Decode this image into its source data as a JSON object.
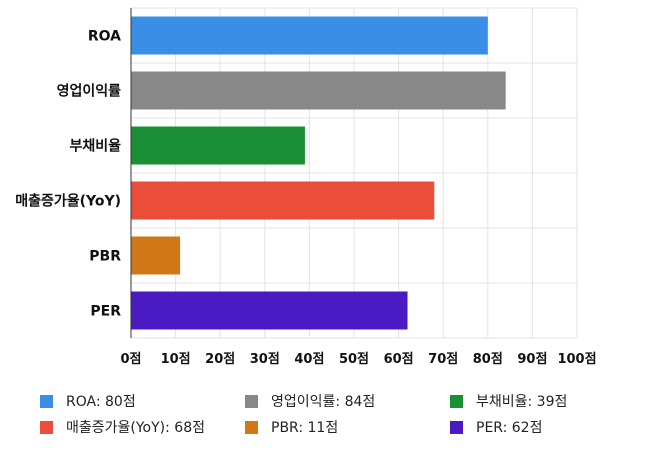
{
  "chart_data": {
    "type": "bar",
    "orientation": "horizontal",
    "categories": [
      "ROA",
      "영업이익률",
      "부채비율",
      "매출증가율(YoY)",
      "PBR",
      "PER"
    ],
    "values": [
      80,
      84,
      39,
      68,
      11,
      62
    ],
    "colors": [
      "#3a8ee6",
      "#888888",
      "#1a8f35",
      "#ea4d3a",
      "#d07818",
      "#4a1ac3"
    ],
    "xlim": [
      0,
      100
    ],
    "xticks": [
      0,
      10,
      20,
      30,
      40,
      50,
      60,
      70,
      80,
      90,
      100
    ],
    "tick_suffix": "점",
    "grid": true,
    "legend_position": "bottom"
  },
  "legend": [
    {
      "label": "ROA: 80점",
      "color": "#3a8ee6"
    },
    {
      "label": "영업이익률: 84점",
      "color": "#888888"
    },
    {
      "label": "부채비율: 39점",
      "color": "#1a8f35"
    },
    {
      "label": "매출증가율(YoY): 68점",
      "color": "#ea4d3a"
    },
    {
      "label": "PBR: 11점",
      "color": "#d07818"
    },
    {
      "label": "PER: 62점",
      "color": "#4a1ac3"
    }
  ]
}
